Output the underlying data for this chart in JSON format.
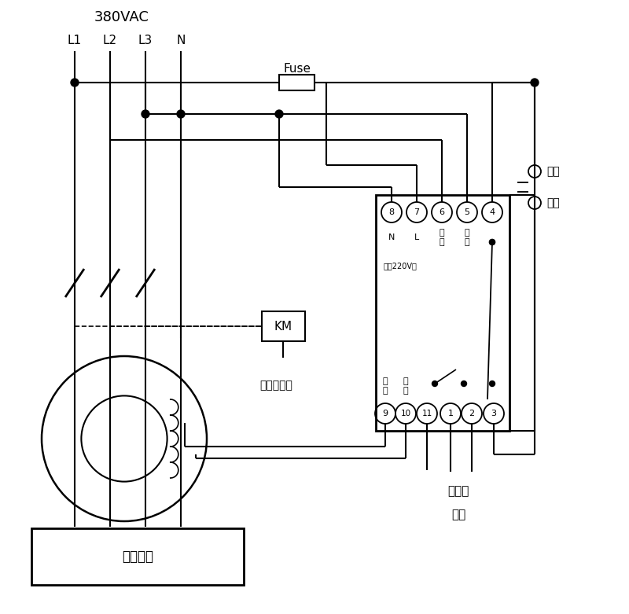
{
  "voltage_label": "380VAC",
  "phase_labels": [
    "L1",
    "L2",
    "L3",
    "N"
  ],
  "fuse_label": "Fuse",
  "km_label": "KM",
  "transformer_label": "零序互感器",
  "user_device_label": "用户设备",
  "sound_light_1": "接声光",
  "sound_light_2": "报警",
  "self_lock_1": "自锁",
  "self_lock_2": "开关",
  "power_label": "电源220V～",
  "N_label": "N",
  "L_label": "L",
  "test_label": "试验",
  "signal_label": "信号",
  "terminal_top": [
    "8",
    "7",
    "6",
    "5",
    "4"
  ],
  "terminal_bot": [
    "9",
    "10",
    "11",
    "1",
    "2",
    "3"
  ]
}
